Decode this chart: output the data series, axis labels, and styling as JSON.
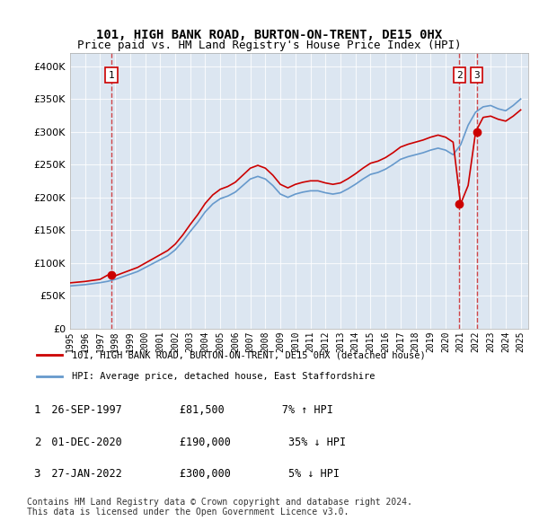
{
  "title1": "101, HIGH BANK ROAD, BURTON-ON-TRENT, DE15 0HX",
  "title2": "Price paid vs. HM Land Registry's House Price Index (HPI)",
  "legend1": "101, HIGH BANK ROAD, BURTON-ON-TRENT, DE15 0HX (detached house)",
  "legend2": "HPI: Average price, detached house, East Staffordshire",
  "footnote": "Contains HM Land Registry data © Crown copyright and database right 2024.\nThis data is licensed under the Open Government Licence v3.0.",
  "transactions": [
    {
      "num": 1,
      "date_str": "26-SEP-1997",
      "date_x": 1997.74,
      "price": 81500,
      "pct": "7%",
      "dir": "↑"
    },
    {
      "num": 2,
      "date_str": "01-DEC-2020",
      "date_x": 2020.92,
      "price": 190000,
      "pct": "35%",
      "dir": "↓"
    },
    {
      "num": 3,
      "date_str": "27-JAN-2022",
      "date_x": 2022.07,
      "price": 300000,
      "pct": "5%",
      "dir": "↓"
    }
  ],
  "background_color": "#dce6f1",
  "plot_bg": "#dce6f1",
  "line_color_price": "#cc0000",
  "line_color_hpi": "#6699cc",
  "ylim": [
    0,
    420000
  ],
  "yticks": [
    0,
    50000,
    100000,
    150000,
    200000,
    250000,
    300000,
    350000,
    400000
  ],
  "xlim_start": 1995.0,
  "xlim_end": 2025.5
}
